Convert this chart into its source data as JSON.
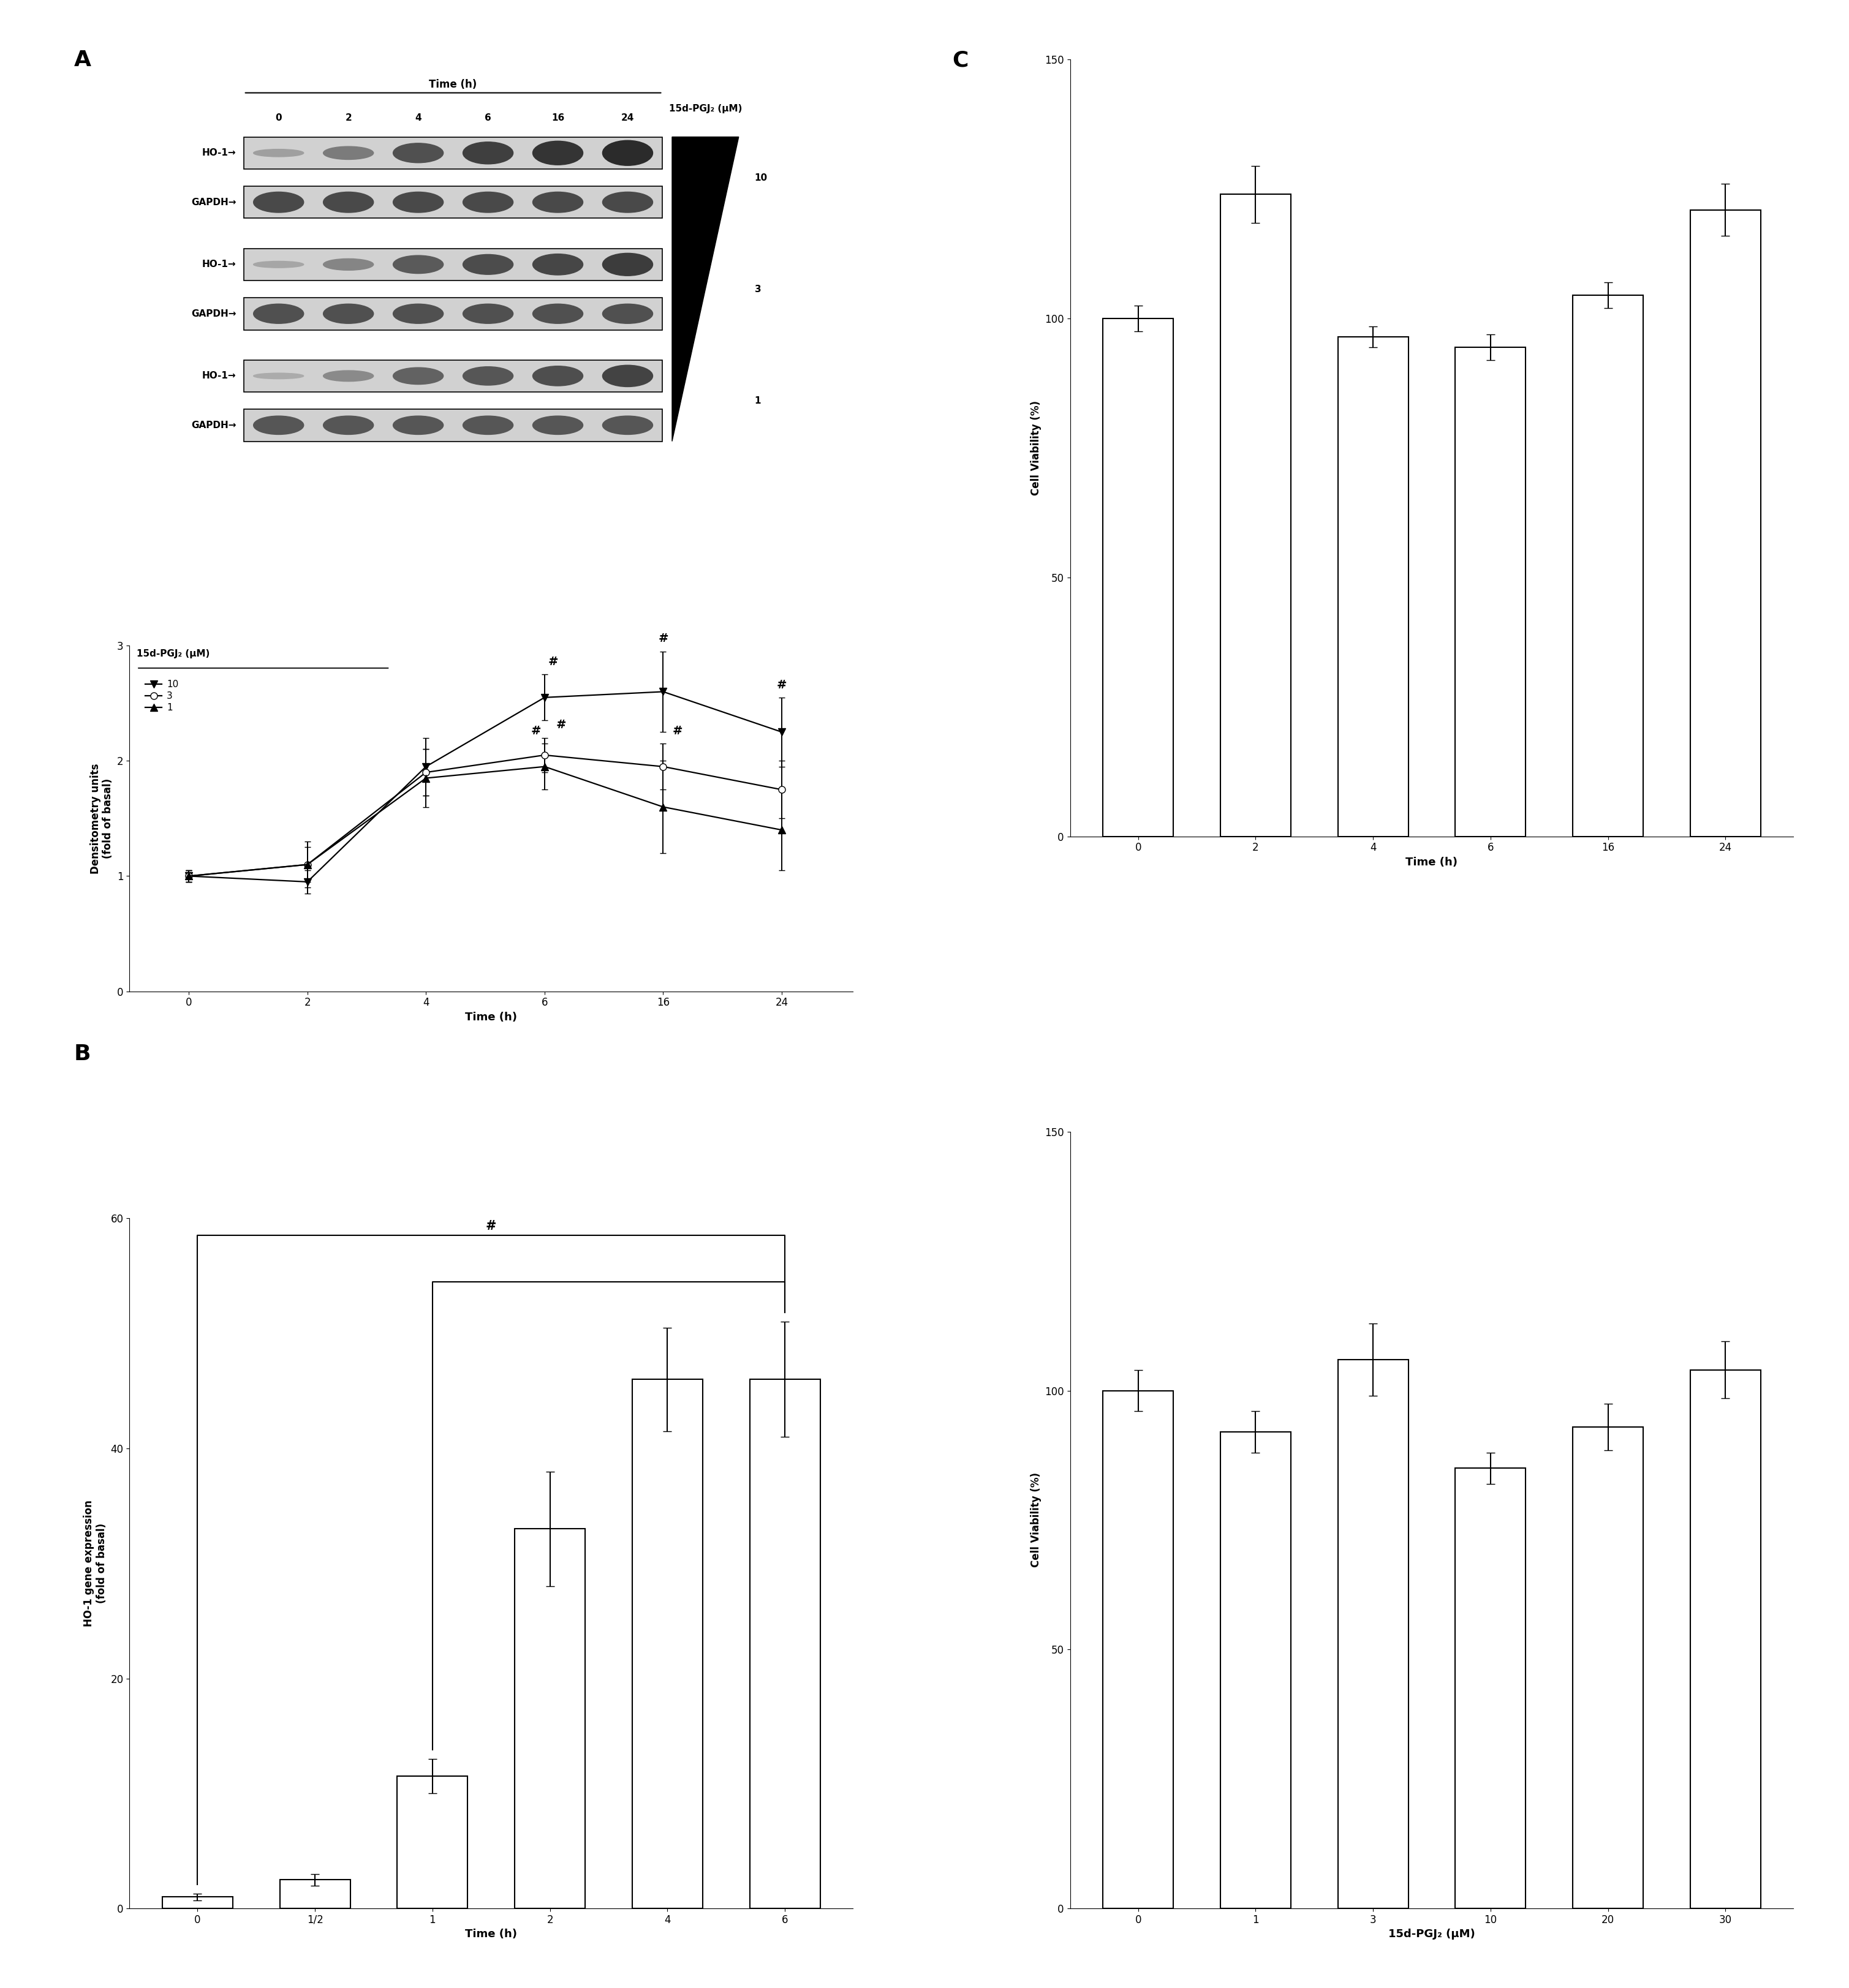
{
  "panel_A_line": {
    "x": [
      0,
      2,
      4,
      6,
      16,
      24
    ],
    "series_10": {
      "y": [
        1.0,
        0.95,
        1.95,
        2.55,
        2.6,
        2.25
      ],
      "err": [
        0.05,
        0.1,
        0.25,
        0.2,
        0.35,
        0.3
      ]
    },
    "series_3": {
      "y": [
        1.0,
        1.1,
        1.9,
        2.05,
        1.95,
        1.75
      ],
      "err": [
        0.05,
        0.15,
        0.2,
        0.15,
        0.2,
        0.25
      ]
    },
    "series_1": {
      "y": [
        1.0,
        1.1,
        1.85,
        1.95,
        1.6,
        1.4
      ],
      "err": [
        0.05,
        0.2,
        0.25,
        0.2,
        0.4,
        0.35
      ]
    },
    "xlabel": "Time (h)",
    "ylabel": "Densitometry units\n(fold of basal)",
    "ylim": [
      0,
      3
    ],
    "yticks": [
      0,
      1,
      2,
      3
    ],
    "xticks": [
      0,
      2,
      4,
      6,
      16,
      24
    ]
  },
  "panel_B": {
    "x_labels": [
      "0",
      "1/2",
      "1",
      "2",
      "4",
      "6"
    ],
    "y": [
      1.0,
      2.5,
      11.5,
      33.0,
      46.0,
      46.0
    ],
    "err": [
      0.3,
      0.5,
      1.5,
      5.0,
      4.5,
      5.0
    ],
    "xlabel": "Time (h)",
    "ylabel": "HO-1 gene expression\n(fold of basal)",
    "ylim": [
      0,
      60
    ],
    "yticks": [
      0,
      20,
      40,
      60
    ]
  },
  "panel_C1": {
    "x_labels": [
      "0",
      "2",
      "4",
      "6",
      "16",
      "24"
    ],
    "y": [
      100.0,
      124.0,
      96.5,
      94.5,
      104.5,
      121.0
    ],
    "err": [
      2.5,
      5.5,
      2.0,
      2.5,
      2.5,
      5.0
    ],
    "xlabel": "Time (h)",
    "ylabel": "Cell Viability (%)",
    "ylim": [
      0,
      150
    ],
    "yticks": [
      0,
      50,
      100,
      150
    ]
  },
  "panel_C2": {
    "x_labels": [
      "0",
      "1",
      "3",
      "10",
      "20",
      "30"
    ],
    "y": [
      100.0,
      92.0,
      106.0,
      85.0,
      93.0,
      104.0
    ],
    "err": [
      4.0,
      4.0,
      7.0,
      3.0,
      4.5,
      5.5
    ],
    "xlabel": "15d-PGJ₂ (μM)",
    "ylabel": "Cell Viability (%)",
    "ylim": [
      0,
      150
    ],
    "yticks": [
      0,
      50,
      100,
      150
    ]
  },
  "wb_time_labels": [
    "0",
    "2",
    "4",
    "6",
    "16",
    "24"
  ],
  "wb_row_labels": [
    "HO-1→",
    "GAPDH→",
    "HO-1→",
    "GAPDH→",
    "HO-1→",
    "GAPDH→"
  ],
  "wb_conc_labels": [
    "10",
    "3",
    "1"
  ],
  "bg_color": "#ffffff",
  "bar_color": "#ffffff",
  "bar_edge_color": "#000000"
}
